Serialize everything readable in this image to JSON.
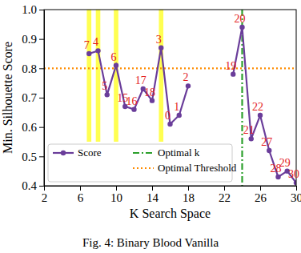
{
  "chart_data": {
    "type": "line",
    "caption": "Fig. 4: Binary Blood Vanilla",
    "x_label": "K Search Space",
    "y_label": "Min. Silhouette Score",
    "x": [
      7,
      8,
      9,
      10,
      11,
      12,
      13,
      14,
      15,
      16,
      17,
      18,
      19,
      20,
      21,
      22,
      23,
      24,
      25,
      26,
      27,
      28,
      29,
      30
    ],
    "series": [
      {
        "name": "Score",
        "color": "#6a3d9a",
        "marker": "circle",
        "values": [
          0.85,
          0.86,
          0.71,
          0.81,
          0.67,
          0.66,
          0.73,
          0.69,
          0.87,
          0.61,
          0.64,
          0.74,
          null,
          null,
          null,
          null,
          0.78,
          0.94,
          0.56,
          0.64,
          0.52,
          0.43,
          0.45,
          0.41
        ],
        "point_labels": [
          7,
          4,
          5,
          6,
          15,
          16,
          17,
          18,
          3,
          0,
          1,
          2,
          null,
          null,
          null,
          null,
          19,
          20,
          21,
          22,
          27,
          28,
          29,
          30
        ]
      }
    ],
    "threshold": {
      "name": "Optimal Threshold",
      "value": 0.8,
      "color": "#ff8c00",
      "line_style": "dotted"
    },
    "optimal_k": {
      "name": "Optimal k",
      "value": 24,
      "color": "#2ca02c",
      "line_style": "dashdot"
    },
    "highlight_k": [
      7,
      8,
      10,
      15
    ],
    "xlim": [
      2,
      30
    ],
    "ylim": [
      0.4,
      1.0
    ],
    "xticks": [
      2,
      6,
      10,
      14,
      18,
      22,
      26,
      30
    ],
    "yticks": [
      0.4,
      0.5,
      0.6,
      0.7,
      0.8,
      0.9,
      {
        "value": 1.0,
        "label": "1.0"
      }
    ],
    "legend": "lower left",
    "grid": false
  }
}
